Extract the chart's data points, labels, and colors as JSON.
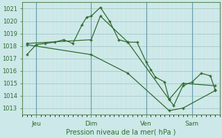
{
  "xlabel": "Pression niveau de la mer( hPa )",
  "ylim": [
    1012.5,
    1021.5
  ],
  "xlim": [
    0.0,
    21.5
  ],
  "yticks": [
    1013,
    1014,
    1015,
    1016,
    1017,
    1018,
    1019,
    1020,
    1021
  ],
  "xtick_positions": [
    1.5,
    7.5,
    13.5,
    18.5
  ],
  "xtick_labels": [
    "Jeu",
    "Dim",
    "Ven",
    "Sam"
  ],
  "vlines": [
    1.5,
    7.5,
    13.5,
    18.5
  ],
  "bg_color": "#cce8e8",
  "grid_major_color": "#aacccc",
  "grid_minor_color": "#ddeaea",
  "line_color": "#2d6b2d",
  "line1": [
    [
      0.5,
      1017.3
    ],
    [
      1.5,
      1018.1
    ],
    [
      2.5,
      1018.2
    ],
    [
      3.5,
      1018.3
    ],
    [
      4.5,
      1018.5
    ],
    [
      5.5,
      1018.2
    ],
    [
      6.5,
      1019.7
    ],
    [
      7.0,
      1020.3
    ],
    [
      7.5,
      1020.4
    ],
    [
      8.5,
      1021.1
    ],
    [
      9.5,
      1020.0
    ],
    [
      10.5,
      1018.5
    ],
    [
      11.5,
      1018.3
    ],
    [
      12.5,
      1018.3
    ],
    [
      13.5,
      1016.7
    ],
    [
      14.0,
      1016.1
    ],
    [
      14.5,
      1015.5
    ],
    [
      15.5,
      1015.1
    ],
    [
      16.0,
      1013.7
    ],
    [
      16.5,
      1013.2
    ],
    [
      17.5,
      1014.8
    ],
    [
      18.5,
      1015.1
    ],
    [
      19.5,
      1015.8
    ],
    [
      20.5,
      1015.6
    ],
    [
      21.0,
      1014.5
    ]
  ],
  "line2": [
    [
      0.5,
      1018.2
    ],
    [
      7.5,
      1018.5
    ],
    [
      8.5,
      1020.4
    ],
    [
      11.5,
      1018.3
    ],
    [
      16.0,
      1013.7
    ],
    [
      17.5,
      1015.0
    ],
    [
      21.0,
      1014.8
    ]
  ],
  "line3": [
    [
      0.5,
      1018.1
    ],
    [
      7.5,
      1017.3
    ],
    [
      11.5,
      1015.8
    ],
    [
      16.0,
      1012.8
    ],
    [
      17.5,
      1013.0
    ],
    [
      21.0,
      1014.4
    ]
  ]
}
